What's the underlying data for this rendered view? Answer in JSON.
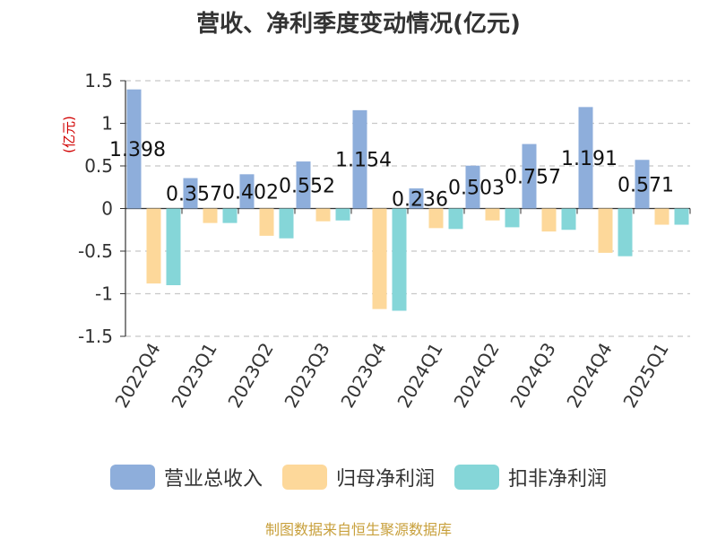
{
  "chart_data": {
    "type": "bar",
    "title": "营收、净利季度变动情况(亿元)",
    "ylabel": "(亿元)",
    "xlabel": "",
    "ylim": [
      -1.5,
      1.5
    ],
    "yticks": [
      1.5,
      1,
      0.5,
      0,
      -0.5,
      -1,
      -1.5
    ],
    "ytick_labels": [
      "1.5",
      "1",
      "0.5",
      "0",
      "-0.5",
      "-1",
      "-1.5"
    ],
    "grid": true,
    "legend_position": "bottom",
    "categories": [
      "2022Q4",
      "2023Q1",
      "2023Q2",
      "2023Q3",
      "2023Q4",
      "2024Q1",
      "2024Q2",
      "2024Q3",
      "2024Q4",
      "2025Q1"
    ],
    "series": [
      {
        "name": "营业总收入",
        "color": "#8eaedb",
        "values": [
          1.398,
          0.357,
          0.402,
          0.552,
          1.154,
          0.236,
          0.503,
          0.757,
          1.191,
          0.571
        ],
        "labels": [
          "1.398",
          "0.357",
          "0.402",
          "0.552",
          "1.154",
          "0.236",
          "0.503",
          "0.757",
          "1.191",
          "0.571"
        ]
      },
      {
        "name": "归母净利润",
        "color": "#fdd89a",
        "values": [
          -0.88,
          -0.17,
          -0.32,
          -0.15,
          -1.18,
          -0.23,
          -0.14,
          -0.27,
          -0.52,
          -0.19
        ]
      },
      {
        "name": "扣非净利润",
        "color": "#85d6d8",
        "values": [
          -0.9,
          -0.17,
          -0.35,
          -0.14,
          -1.2,
          -0.24,
          -0.22,
          -0.25,
          -0.56,
          -0.19
        ]
      }
    ]
  },
  "source": "制图数据来自恒生聚源数据库"
}
